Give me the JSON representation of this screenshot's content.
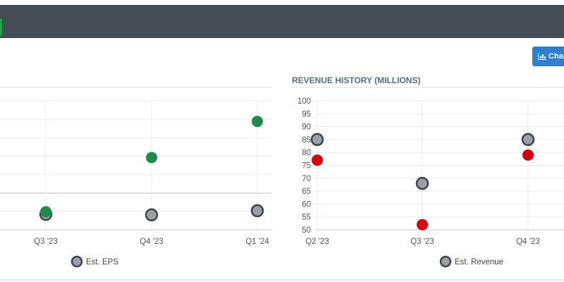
{
  "toolbar": {
    "chart_button_label": "Char"
  },
  "chart_data": [
    {
      "type": "scatter",
      "title": "",
      "categories": [
        "Q3 '23",
        "Q4 '23",
        "Q1 '24"
      ],
      "series": [
        {
          "name": "Est. EPS",
          "color": "#9ba0a6",
          "values": [
            0.3,
            0.29,
            0.37
          ]
        },
        {
          "name": "",
          "color": "#1e8a4c",
          "values": [
            0.35,
            1.4,
            2.1
          ]
        }
      ],
      "ylim": [
        0,
        2.5
      ],
      "legend": "bottom-center",
      "grid": true
    },
    {
      "type": "scatter",
      "title": "REVENUE HISTORY (MILLIONS)",
      "categories": [
        "Q2 '23",
        "Q3 '23",
        "Q4 '23"
      ],
      "yticks": [
        50,
        55,
        60,
        65,
        70,
        75,
        80,
        85,
        90,
        95,
        100
      ],
      "series": [
        {
          "name": "Est. Revenue",
          "color": "#9ba0a6",
          "values": [
            85,
            68,
            85
          ]
        },
        {
          "name": "",
          "color": "#d9000d",
          "values": [
            77,
            52,
            79
          ]
        }
      ],
      "ylim": [
        50,
        100
      ],
      "legend": "bottom-center",
      "grid": true
    }
  ]
}
